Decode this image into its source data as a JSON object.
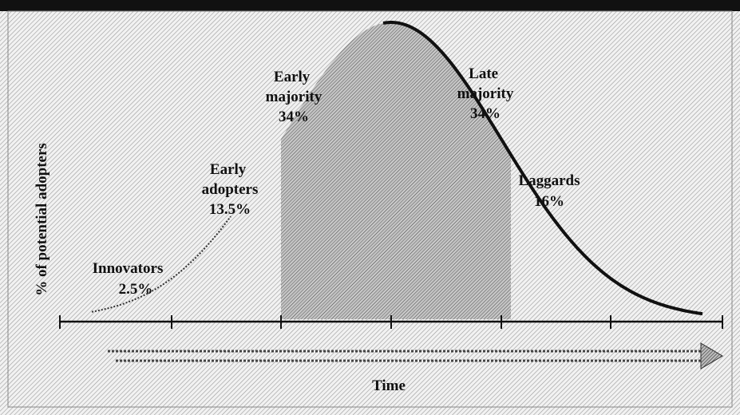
{
  "diagram": {
    "y_axis_label": "% of potential adopters",
    "x_axis_label": "Time",
    "segments": [
      {
        "name": "Innovators",
        "share": "2.5%"
      },
      {
        "name": "Early adopters",
        "share": "13.5%"
      },
      {
        "name": "Early majority",
        "share": "34%"
      },
      {
        "name": "Late majority",
        "share": "34%"
      },
      {
        "name": "Laggards",
        "share": "16%"
      }
    ]
  }
}
